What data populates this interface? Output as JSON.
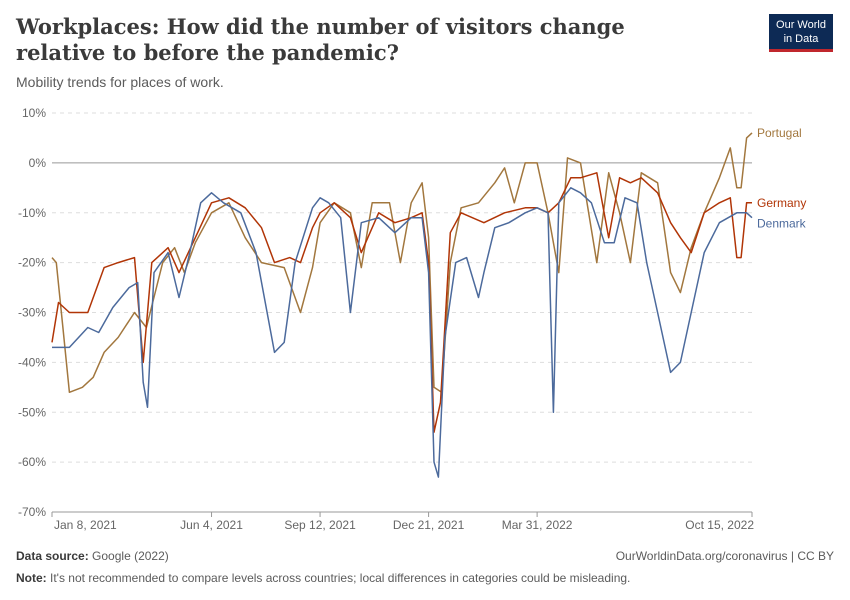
{
  "title": "Workplaces: How did the number of visitors change relative to before the pandemic?",
  "subtitle": "Mobility trends for places of work.",
  "logo": {
    "line1": "Our World",
    "line2": "in Data"
  },
  "footer": {
    "source_label": "Data source:",
    "source_value": "Google (2022)",
    "url": "OurWorldinData.org/coronavirus | CC BY",
    "note_label": "Note:",
    "note_value": "It's not recommended to compare levels across countries; local differences in categories could be misleading."
  },
  "colors": {
    "Portugal": "#a2773e",
    "Germany": "#b13507",
    "Denmark": "#4c6a9c"
  },
  "chart_data": {
    "type": "line",
    "ylim": [
      -70,
      10
    ],
    "yticks": [
      10,
      0,
      -10,
      -20,
      -30,
      -40,
      -50,
      -60,
      -70
    ],
    "ytick_labels": [
      "10%",
      "0%",
      "-10%",
      "-20%",
      "-30%",
      "-40%",
      "-50%",
      "-60%",
      "-70%"
    ],
    "xlim": [
      "2021-01-08",
      "2022-10-15"
    ],
    "xticks": [
      "2021-01-08",
      "2021-06-04",
      "2021-09-12",
      "2021-12-21",
      "2022-03-31",
      "2022-10-15"
    ],
    "xtick_labels": [
      "Jan 8, 2021",
      "Jun 4, 2021",
      "Sep 12, 2021",
      "Dec 21, 2021",
      "Mar 31, 2022",
      "Oct 15, 2022"
    ],
    "series": [
      {
        "name": "Portugal",
        "points": [
          [
            "2021-01-08",
            -19
          ],
          [
            "2021-01-12",
            -20
          ],
          [
            "2021-01-18",
            -33
          ],
          [
            "2021-01-24",
            -46
          ],
          [
            "2021-02-05",
            -45
          ],
          [
            "2021-02-15",
            -43
          ],
          [
            "2021-02-25",
            -38
          ],
          [
            "2021-03-10",
            -35
          ],
          [
            "2021-03-25",
            -30
          ],
          [
            "2021-04-05",
            -33
          ],
          [
            "2021-04-20",
            -20
          ],
          [
            "2021-05-01",
            -17
          ],
          [
            "2021-05-10",
            -22
          ],
          [
            "2021-05-20",
            -16
          ],
          [
            "2021-06-04",
            -10
          ],
          [
            "2021-06-20",
            -8
          ],
          [
            "2021-07-05",
            -15
          ],
          [
            "2021-07-20",
            -20
          ],
          [
            "2021-08-10",
            -21
          ],
          [
            "2021-08-25",
            -30
          ],
          [
            "2021-09-05",
            -21
          ],
          [
            "2021-09-12",
            -12
          ],
          [
            "2021-09-25",
            -8
          ],
          [
            "2021-10-10",
            -10
          ],
          [
            "2021-10-20",
            -21
          ],
          [
            "2021-10-30",
            -8
          ],
          [
            "2021-11-15",
            -8
          ],
          [
            "2021-11-25",
            -20
          ],
          [
            "2021-12-05",
            -8
          ],
          [
            "2021-12-15",
            -4
          ],
          [
            "2021-12-21",
            -15
          ],
          [
            "2021-12-26",
            -45
          ],
          [
            "2022-01-02",
            -46
          ],
          [
            "2022-01-10",
            -20
          ],
          [
            "2022-01-20",
            -9
          ],
          [
            "2022-02-05",
            -8
          ],
          [
            "2022-02-20",
            -4
          ],
          [
            "2022-03-01",
            -1
          ],
          [
            "2022-03-10",
            -8
          ],
          [
            "2022-03-20",
            0
          ],
          [
            "2022-03-31",
            0
          ],
          [
            "2022-04-10",
            -10
          ],
          [
            "2022-04-20",
            -22
          ],
          [
            "2022-04-28",
            1
          ],
          [
            "2022-05-10",
            0
          ],
          [
            "2022-05-25",
            -20
          ],
          [
            "2022-06-05",
            -2
          ],
          [
            "2022-06-15",
            -10
          ],
          [
            "2022-06-25",
            -20
          ],
          [
            "2022-07-05",
            -2
          ],
          [
            "2022-07-20",
            -4
          ],
          [
            "2022-08-01",
            -22
          ],
          [
            "2022-08-10",
            -26
          ],
          [
            "2022-08-20",
            -17
          ],
          [
            "2022-09-01",
            -10
          ],
          [
            "2022-09-15",
            -3
          ],
          [
            "2022-09-25",
            3
          ],
          [
            "2022-10-01",
            -5
          ],
          [
            "2022-10-05",
            -5
          ],
          [
            "2022-10-10",
            5
          ],
          [
            "2022-10-15",
            6
          ]
        ]
      },
      {
        "name": "Germany",
        "points": [
          [
            "2021-01-08",
            -36
          ],
          [
            "2021-01-14",
            -28
          ],
          [
            "2021-01-24",
            -30
          ],
          [
            "2021-02-10",
            -30
          ],
          [
            "2021-02-25",
            -21
          ],
          [
            "2021-03-10",
            -20
          ],
          [
            "2021-03-25",
            -19
          ],
          [
            "2021-04-02",
            -40
          ],
          [
            "2021-04-10",
            -20
          ],
          [
            "2021-04-25",
            -17
          ],
          [
            "2021-05-05",
            -22
          ],
          [
            "2021-05-20",
            -15
          ],
          [
            "2021-06-04",
            -8
          ],
          [
            "2021-06-20",
            -7
          ],
          [
            "2021-07-05",
            -9
          ],
          [
            "2021-07-20",
            -13
          ],
          [
            "2021-08-01",
            -20
          ],
          [
            "2021-08-15",
            -19
          ],
          [
            "2021-08-25",
            -20
          ],
          [
            "2021-09-05",
            -13
          ],
          [
            "2021-09-12",
            -10
          ],
          [
            "2021-09-25",
            -8
          ],
          [
            "2021-10-10",
            -11
          ],
          [
            "2021-10-20",
            -18
          ],
          [
            "2021-11-05",
            -10
          ],
          [
            "2021-11-20",
            -12
          ],
          [
            "2021-12-05",
            -11
          ],
          [
            "2021-12-15",
            -10
          ],
          [
            "2021-12-21",
            -20
          ],
          [
            "2021-12-26",
            -54
          ],
          [
            "2022-01-01",
            -48
          ],
          [
            "2022-01-10",
            -14
          ],
          [
            "2022-01-20",
            -10
          ],
          [
            "2022-02-10",
            -12
          ],
          [
            "2022-03-01",
            -10
          ],
          [
            "2022-03-20",
            -9
          ],
          [
            "2022-03-31",
            -9
          ],
          [
            "2022-04-10",
            -10
          ],
          [
            "2022-04-20",
            -8
          ],
          [
            "2022-05-01",
            -3
          ],
          [
            "2022-05-10",
            -3
          ],
          [
            "2022-05-25",
            -2
          ],
          [
            "2022-06-05",
            -15
          ],
          [
            "2022-06-15",
            -3
          ],
          [
            "2022-06-25",
            -4
          ],
          [
            "2022-07-05",
            -3
          ],
          [
            "2022-07-20",
            -6
          ],
          [
            "2022-08-01",
            -12
          ],
          [
            "2022-08-10",
            -15
          ],
          [
            "2022-08-20",
            -18
          ],
          [
            "2022-09-01",
            -10
          ],
          [
            "2022-09-15",
            -8
          ],
          [
            "2022-09-25",
            -7
          ],
          [
            "2022-10-01",
            -19
          ],
          [
            "2022-10-05",
            -19
          ],
          [
            "2022-10-10",
            -8
          ],
          [
            "2022-10-15",
            -8
          ]
        ]
      },
      {
        "name": "Denmark",
        "points": [
          [
            "2021-01-08",
            -37
          ],
          [
            "2021-01-24",
            -37
          ],
          [
            "2021-02-10",
            -33
          ],
          [
            "2021-02-20",
            -34
          ],
          [
            "2021-03-05",
            -29
          ],
          [
            "2021-03-20",
            -25
          ],
          [
            "2021-03-28",
            -24
          ],
          [
            "2021-04-02",
            -44
          ],
          [
            "2021-04-06",
            -49
          ],
          [
            "2021-04-12",
            -22
          ],
          [
            "2021-04-25",
            -18
          ],
          [
            "2021-05-05",
            -27
          ],
          [
            "2021-05-15",
            -18
          ],
          [
            "2021-05-25",
            -8
          ],
          [
            "2021-06-04",
            -6
          ],
          [
            "2021-06-15",
            -8
          ],
          [
            "2021-07-01",
            -10
          ],
          [
            "2021-07-15",
            -18
          ],
          [
            "2021-08-01",
            -38
          ],
          [
            "2021-08-10",
            -36
          ],
          [
            "2021-08-20",
            -20
          ],
          [
            "2021-09-05",
            -9
          ],
          [
            "2021-09-12",
            -7
          ],
          [
            "2021-09-20",
            -8
          ],
          [
            "2021-10-01",
            -11
          ],
          [
            "2021-10-10",
            -30
          ],
          [
            "2021-10-20",
            -12
          ],
          [
            "2021-11-05",
            -11
          ],
          [
            "2021-11-20",
            -14
          ],
          [
            "2021-12-05",
            -11
          ],
          [
            "2021-12-15",
            -11
          ],
          [
            "2021-12-21",
            -22
          ],
          [
            "2021-12-26",
            -60
          ],
          [
            "2021-12-30",
            -63
          ],
          [
            "2022-01-05",
            -35
          ],
          [
            "2022-01-15",
            -20
          ],
          [
            "2022-01-25",
            -19
          ],
          [
            "2022-02-05",
            -27
          ],
          [
            "2022-02-10",
            -22
          ],
          [
            "2022-02-20",
            -13
          ],
          [
            "2022-03-05",
            -12
          ],
          [
            "2022-03-20",
            -10
          ],
          [
            "2022-03-31",
            -9
          ],
          [
            "2022-04-10",
            -10
          ],
          [
            "2022-04-15",
            -50
          ],
          [
            "2022-04-20",
            -8
          ],
          [
            "2022-05-01",
            -5
          ],
          [
            "2022-05-10",
            -6
          ],
          [
            "2022-05-20",
            -8
          ],
          [
            "2022-06-01",
            -16
          ],
          [
            "2022-06-10",
            -16
          ],
          [
            "2022-06-20",
            -7
          ],
          [
            "2022-07-01",
            -8
          ],
          [
            "2022-07-10",
            -20
          ],
          [
            "2022-07-20",
            -30
          ],
          [
            "2022-08-01",
            -42
          ],
          [
            "2022-08-10",
            -40
          ],
          [
            "2022-08-20",
            -30
          ],
          [
            "2022-09-01",
            -18
          ],
          [
            "2022-09-15",
            -12
          ],
          [
            "2022-10-01",
            -10
          ],
          [
            "2022-10-10",
            -10
          ],
          [
            "2022-10-15",
            -11
          ]
        ]
      }
    ]
  }
}
